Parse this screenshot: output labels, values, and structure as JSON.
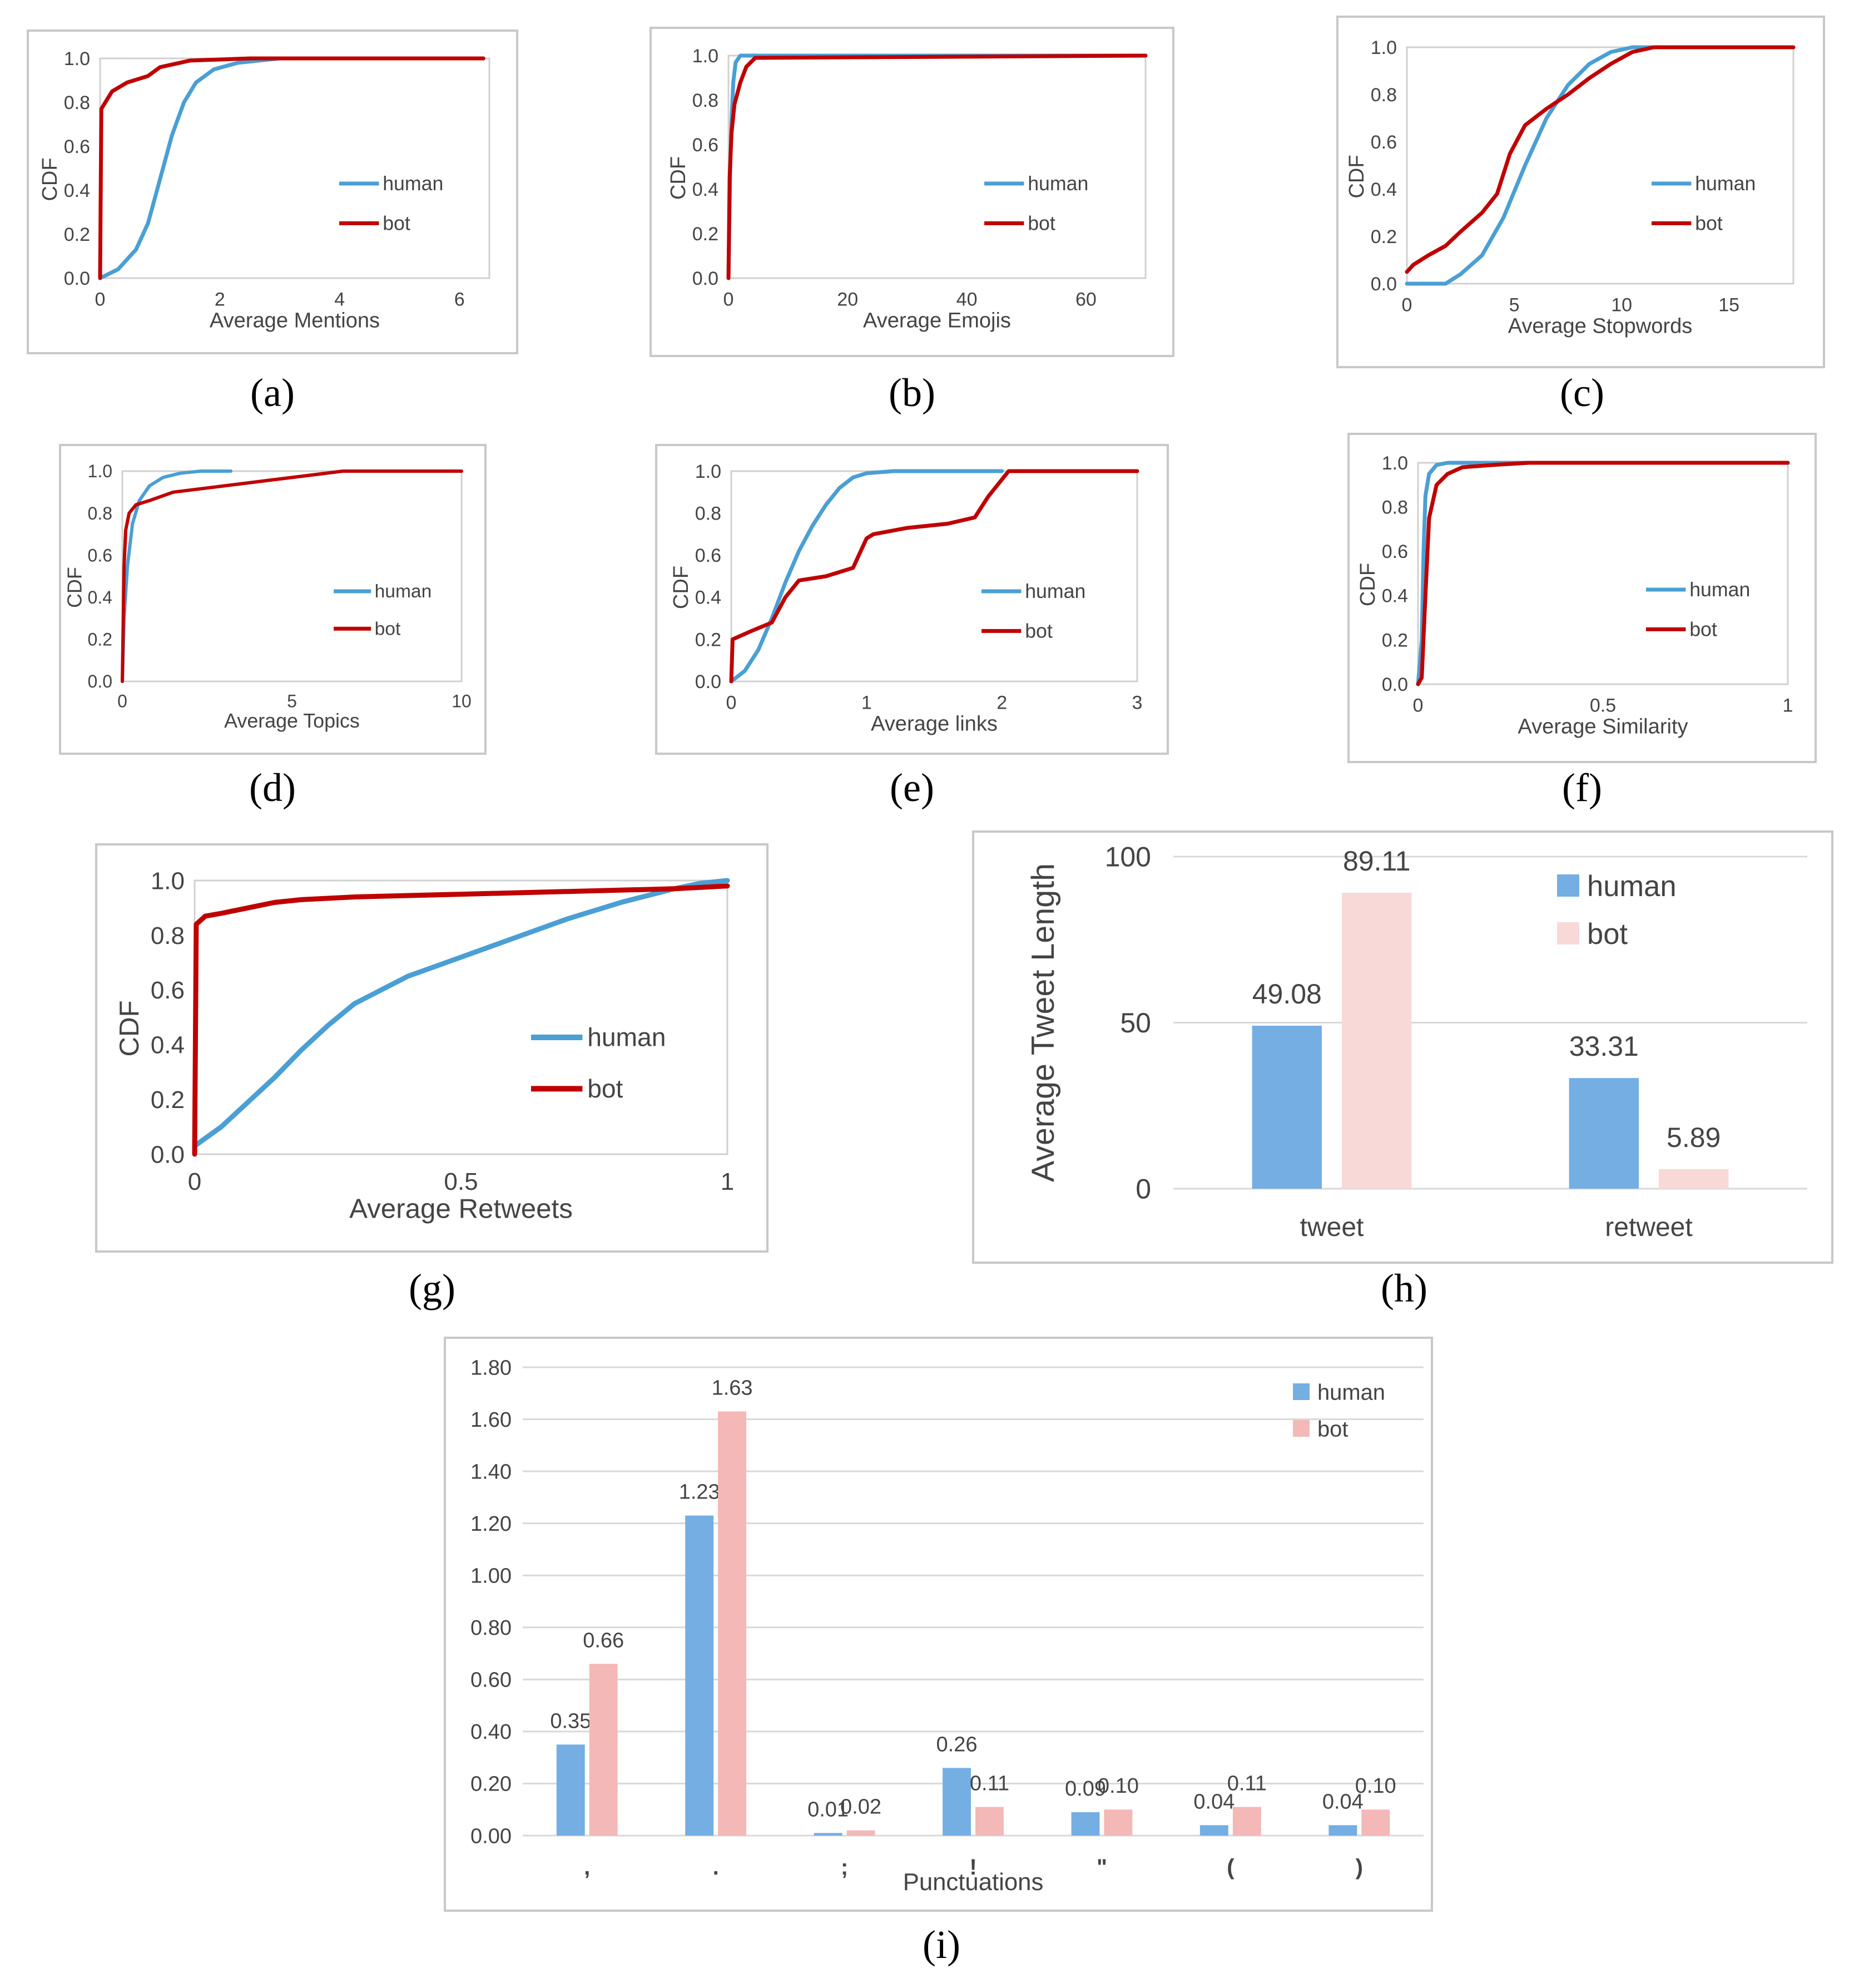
{
  "colors": {
    "human": "#4a9fd4",
    "bot": "#c00000",
    "human_bar": "#74aee3",
    "bot_bar_h": "#f8d9d8",
    "bot_bar_i": "#f4b8b7",
    "frame": "#c8c8c8",
    "grid": "#d9d9d9",
    "axis": "#444444"
  },
  "chart_data": [
    {
      "id": "a",
      "caption": "(a)",
      "type": "line",
      "xlabel": "Average Mentions",
      "ylabel": "CDF",
      "xlim": [
        0,
        6.5
      ],
      "ylim": [
        0,
        1
      ],
      "xticks": [
        "0",
        "2",
        "4",
        "6"
      ],
      "yticks": [
        "0.0",
        "0.2",
        "0.4",
        "0.6",
        "0.8",
        "1.0"
      ],
      "series": [
        {
          "name": "human",
          "x": [
            0,
            0.3,
            0.6,
            0.8,
            1.0,
            1.2,
            1.4,
            1.6,
            1.9,
            2.3,
            3.0,
            6.4
          ],
          "y": [
            0.0,
            0.04,
            0.13,
            0.25,
            0.45,
            0.65,
            0.8,
            0.89,
            0.95,
            0.98,
            1.0,
            1.0
          ]
        },
        {
          "name": "bot",
          "x": [
            0,
            0.02,
            0.2,
            0.45,
            0.8,
            1.0,
            1.5,
            2.5,
            6.4
          ],
          "y": [
            0.0,
            0.77,
            0.85,
            0.89,
            0.92,
            0.96,
            0.99,
            1.0,
            1.0
          ]
        }
      ]
    },
    {
      "id": "b",
      "caption": "(b)",
      "type": "line",
      "xlabel": "Average Emojis",
      "ylabel": "CDF",
      "xlim": [
        0,
        70
      ],
      "ylim": [
        0,
        1
      ],
      "xticks": [
        "0",
        "20",
        "40",
        "60"
      ],
      "yticks": [
        "0.0",
        "0.2",
        "0.4",
        "0.6",
        "0.8",
        "1.0"
      ],
      "series": [
        {
          "name": "human",
          "x": [
            0,
            0.15,
            0.3,
            0.5,
            0.8,
            1.2,
            2.0,
            70
          ],
          "y": [
            0.0,
            0.25,
            0.5,
            0.7,
            0.88,
            0.97,
            1.0,
            1.0
          ]
        },
        {
          "name": "bot",
          "x": [
            0,
            0.2,
            0.5,
            1.0,
            2.0,
            3.0,
            4.5,
            70
          ],
          "y": [
            0.0,
            0.45,
            0.65,
            0.78,
            0.88,
            0.95,
            0.99,
            1.0
          ]
        }
      ]
    },
    {
      "id": "c",
      "caption": "(c)",
      "type": "line",
      "xlabel": "Average Stopwords",
      "ylabel": "CDF",
      "xlim": [
        0,
        18
      ],
      "ylim": [
        0,
        1
      ],
      "xticks": [
        "0",
        "5",
        "10",
        "15"
      ],
      "yticks": [
        "0.0",
        "0.2",
        "0.4",
        "0.6",
        "0.8",
        "1.0"
      ],
      "series": [
        {
          "name": "human",
          "x": [
            0,
            1.8,
            2.5,
            3.5,
            4.5,
            5.5,
            6.5,
            7.5,
            8.5,
            9.5,
            10.5,
            18
          ],
          "y": [
            0.0,
            0.0,
            0.04,
            0.12,
            0.28,
            0.5,
            0.7,
            0.84,
            0.93,
            0.98,
            1.0,
            1.0
          ]
        },
        {
          "name": "bot",
          "x": [
            0,
            0.3,
            1.0,
            1.8,
            2.5,
            3.5,
            4.2,
            4.8,
            5.5,
            6.5,
            7.5,
            8.5,
            9.5,
            10.5,
            11.5,
            18
          ],
          "y": [
            0.05,
            0.08,
            0.12,
            0.16,
            0.22,
            0.3,
            0.38,
            0.55,
            0.67,
            0.74,
            0.8,
            0.87,
            0.93,
            0.98,
            1.0,
            1.0
          ]
        }
      ]
    },
    {
      "id": "d",
      "caption": "(d)",
      "type": "line",
      "xlabel": "Average Topics",
      "ylabel": "CDF",
      "xlim": [
        0,
        10
      ],
      "ylim": [
        0,
        1
      ],
      "xticks": [
        "0",
        "5",
        "10"
      ],
      "yticks": [
        "0.0",
        "0.2",
        "0.4",
        "0.6",
        "0.8",
        "1.0"
      ],
      "series": [
        {
          "name": "human",
          "x": [
            0,
            0.05,
            0.15,
            0.3,
            0.5,
            0.8,
            1.2,
            1.7,
            2.3,
            3.2
          ],
          "y": [
            0.0,
            0.3,
            0.55,
            0.75,
            0.86,
            0.93,
            0.97,
            0.99,
            1.0,
            1.0
          ]
        },
        {
          "name": "bot",
          "x": [
            0,
            0.05,
            0.1,
            0.2,
            0.4,
            0.8,
            1.5,
            3.0,
            4.5,
            5.5,
            6.5,
            10
          ],
          "y": [
            0.0,
            0.55,
            0.72,
            0.8,
            0.84,
            0.86,
            0.9,
            0.93,
            0.96,
            0.98,
            1.0,
            1.0
          ]
        }
      ]
    },
    {
      "id": "e",
      "caption": "(e)",
      "type": "line",
      "xlabel": "Average links",
      "ylabel": "CDF",
      "xlim": [
        0,
        3
      ],
      "ylim": [
        0,
        1
      ],
      "xticks": [
        "0",
        "1",
        "2",
        "3"
      ],
      "yticks": [
        "0.0",
        "0.2",
        "0.4",
        "0.6",
        "0.8",
        "1.0"
      ],
      "series": [
        {
          "name": "human",
          "x": [
            0,
            0.1,
            0.2,
            0.3,
            0.4,
            0.5,
            0.6,
            0.7,
            0.8,
            0.9,
            1.0,
            1.2,
            1.5,
            2.0
          ],
          "y": [
            0.0,
            0.05,
            0.15,
            0.3,
            0.47,
            0.62,
            0.74,
            0.84,
            0.92,
            0.97,
            0.99,
            1.0,
            1.0,
            1.0
          ]
        },
        {
          "name": "bot",
          "x": [
            0,
            0.01,
            0.15,
            0.3,
            0.4,
            0.5,
            0.7,
            0.9,
            1.0,
            1.05,
            1.3,
            1.6,
            1.8,
            1.9,
            2.0,
            2.05,
            3.0
          ],
          "y": [
            0.0,
            0.2,
            0.24,
            0.28,
            0.4,
            0.48,
            0.5,
            0.54,
            0.68,
            0.7,
            0.73,
            0.75,
            0.78,
            0.88,
            0.96,
            1.0,
            1.0
          ]
        }
      ]
    },
    {
      "id": "f",
      "caption": "(f)",
      "type": "line",
      "xlabel": "Average Similarity",
      "ylabel": "CDF",
      "xlim": [
        0,
        1
      ],
      "ylim": [
        0,
        1
      ],
      "xticks": [
        "0",
        "0.5",
        "1"
      ],
      "yticks": [
        "0.0",
        "0.2",
        "0.4",
        "0.6",
        "0.8",
        "1.0"
      ],
      "series": [
        {
          "name": "human",
          "x": [
            0,
            0.01,
            0.015,
            0.02,
            0.03,
            0.05,
            0.08,
            1.0
          ],
          "y": [
            0.0,
            0.2,
            0.6,
            0.85,
            0.95,
            0.99,
            1.0,
            1.0
          ]
        },
        {
          "name": "bot",
          "x": [
            0,
            0.01,
            0.02,
            0.03,
            0.05,
            0.08,
            0.12,
            0.2,
            0.3,
            1.0
          ],
          "y": [
            0.0,
            0.03,
            0.4,
            0.75,
            0.9,
            0.95,
            0.98,
            0.99,
            1.0,
            1.0
          ]
        }
      ]
    },
    {
      "id": "g",
      "caption": "(g)",
      "type": "line",
      "xlabel": "Average Retweets",
      "ylabel": "CDF",
      "xlim": [
        0,
        1
      ],
      "ylim": [
        0,
        1
      ],
      "xticks": [
        "0",
        "0.5",
        "1"
      ],
      "yticks": [
        "0.0",
        "0.2",
        "0.4",
        "0.6",
        "0.8",
        "1.0"
      ],
      "series": [
        {
          "name": "human",
          "x": [
            0,
            0.05,
            0.1,
            0.15,
            0.2,
            0.25,
            0.3,
            0.35,
            0.4,
            0.5,
            0.6,
            0.7,
            0.8,
            0.9,
            0.95,
            1.0
          ],
          "y": [
            0.03,
            0.1,
            0.19,
            0.28,
            0.38,
            0.47,
            0.55,
            0.6,
            0.65,
            0.72,
            0.79,
            0.86,
            0.92,
            0.97,
            0.99,
            1.0
          ]
        },
        {
          "name": "bot",
          "x": [
            0,
            0.003,
            0.02,
            0.05,
            0.1,
            0.15,
            0.2,
            0.3,
            0.5,
            0.7,
            0.9,
            1.0
          ],
          "y": [
            0.0,
            0.84,
            0.87,
            0.88,
            0.9,
            0.92,
            0.93,
            0.94,
            0.95,
            0.96,
            0.97,
            0.98
          ]
        }
      ]
    },
    {
      "id": "h",
      "caption": "(h)",
      "type": "bar",
      "title": "",
      "xlabel": "",
      "ylabel": "Average Tweet Length",
      "categories": [
        "tweet",
        "retweet"
      ],
      "ylim": [
        0,
        100
      ],
      "yticks": [
        "0",
        "50",
        "100"
      ],
      "series": [
        {
          "name": "human",
          "values": [
            49.08,
            33.31
          ],
          "labels": [
            "49.08",
            "33.31"
          ]
        },
        {
          "name": "bot",
          "values": [
            89.11,
            5.89
          ],
          "labels": [
            "89.11",
            "5.89"
          ]
        }
      ]
    },
    {
      "id": "i",
      "caption": "(i)",
      "type": "bar",
      "xlabel": "Punctuations",
      "ylabel": "",
      "categories": [
        ",",
        ".",
        ";",
        "!",
        "\"",
        "(",
        ")"
      ],
      "ylim": [
        0,
        1.8
      ],
      "yticks": [
        "0.00",
        "0.20",
        "0.40",
        "0.60",
        "0.80",
        "1.00",
        "1.20",
        "1.40",
        "1.60",
        "1.80"
      ],
      "series": [
        {
          "name": "human",
          "values": [
            0.35,
            1.23,
            0.01,
            0.26,
            0.09,
            0.04,
            0.04
          ],
          "labels": [
            "0.35",
            "1.23",
            "0.01",
            "0.26",
            "0.09",
            "0.04",
            "0.04"
          ]
        },
        {
          "name": "bot",
          "values": [
            0.66,
            1.63,
            0.02,
            0.11,
            0.1,
            0.11,
            0.1
          ],
          "labels": [
            "0.66",
            "1.63",
            "0.02",
            "0.11",
            "0.10",
            "0.11",
            "0.10"
          ]
        }
      ]
    }
  ]
}
